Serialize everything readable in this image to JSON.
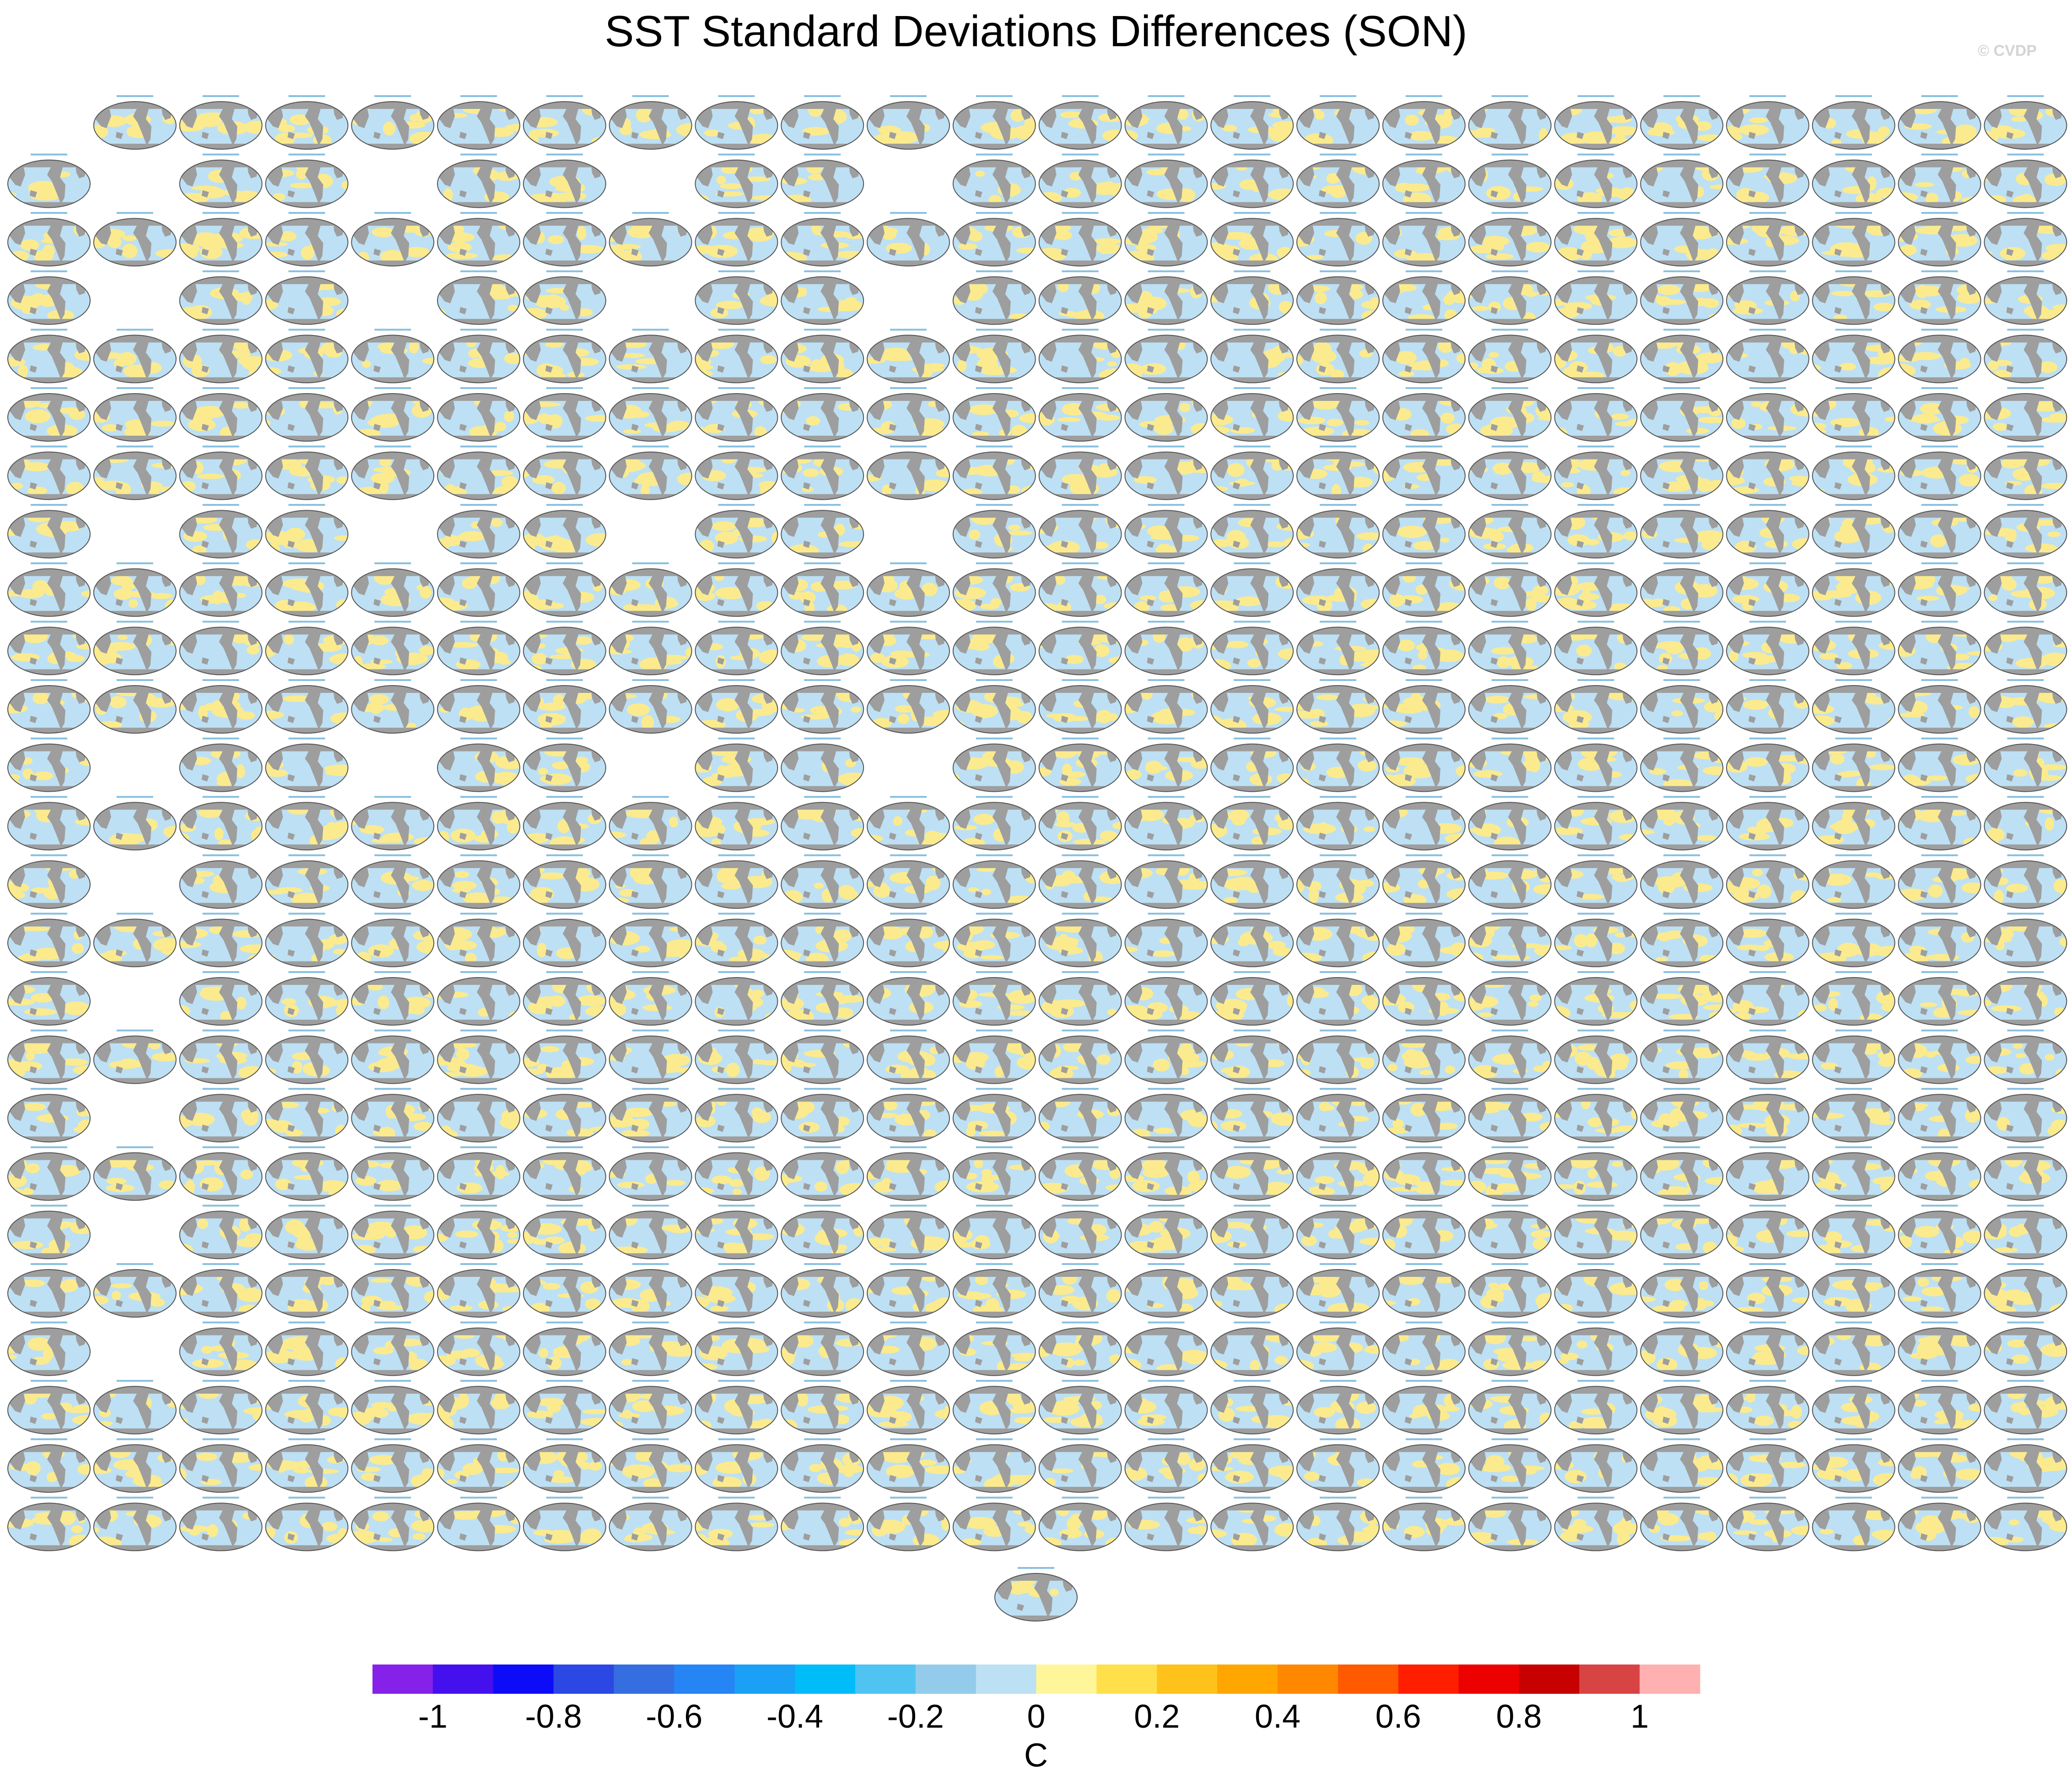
{
  "title": "SST Standard Deviations Differences (SON)",
  "watermark": "© CVDP",
  "colors": {
    "land": "#9e9e9e",
    "ocean_negative": "#bde0f4",
    "ocean_positive": "#fbeb8e",
    "outline": "#555555"
  },
  "panel_grid": {
    "rows": 25,
    "cols": 24,
    "pattern_full_rows": [
      1,
      3,
      5,
      6,
      7,
      9,
      10,
      11,
      13,
      15,
      17,
      19,
      21,
      23,
      24,
      25
    ],
    "row_present_cols": {
      "1": [
        2,
        3,
        4,
        5,
        6,
        7,
        8,
        9,
        10,
        11,
        12,
        13,
        14,
        15,
        16,
        17,
        18,
        19,
        20,
        21,
        22,
        23,
        24
      ],
      "2": [
        1,
        3,
        4,
        6,
        7,
        9,
        10,
        12,
        13,
        14,
        15,
        16,
        17,
        18,
        19,
        20,
        21,
        22,
        23,
        24
      ],
      "4": [
        1,
        3,
        4,
        6,
        7,
        9,
        10,
        12,
        13,
        14,
        15,
        16,
        17,
        18,
        19,
        20,
        21,
        22,
        23,
        24
      ],
      "8": [
        1,
        3,
        4,
        6,
        7,
        9,
        10,
        12,
        13,
        14,
        15,
        16,
        17,
        18,
        19,
        20,
        21,
        22,
        23,
        24
      ],
      "12": [
        1,
        3,
        4,
        6,
        7,
        9,
        10,
        12,
        13,
        14,
        15,
        16,
        17,
        18,
        19,
        20,
        21,
        22,
        23,
        24
      ],
      "14": [
        1,
        3,
        4,
        5,
        6,
        7,
        8,
        9,
        10,
        11,
        12,
        13,
        14,
        15,
        16,
        17,
        18,
        19,
        20,
        21,
        22,
        23,
        24
      ],
      "16": [
        1,
        3,
        4,
        5,
        6,
        7,
        8,
        9,
        10,
        11,
        12,
        13,
        14,
        15,
        16,
        17,
        18,
        19,
        20,
        21,
        22,
        23,
        24
      ],
      "18": [
        1,
        3,
        4,
        5,
        6,
        7,
        8,
        9,
        10,
        11,
        12,
        13,
        14,
        15,
        16,
        17,
        18,
        19,
        20,
        21,
        22,
        23,
        24
      ],
      "20": [
        1,
        3,
        4,
        5,
        6,
        7,
        8,
        9,
        10,
        11,
        12,
        13,
        14,
        15,
        16,
        17,
        18,
        19,
        20,
        21,
        22,
        23,
        24
      ],
      "22": [
        1,
        3,
        4,
        5,
        6,
        7,
        8,
        9,
        10,
        11,
        12,
        13,
        14,
        15,
        16,
        17,
        18,
        19,
        20,
        21,
        22,
        23,
        24
      ]
    },
    "extra_panel": "centered below last row"
  },
  "colorbar": {
    "unit_label": "C",
    "colors": [
      "#8621ea",
      "#4510ee",
      "#0c0cf8",
      "#2c48e4",
      "#356ee0",
      "#2585f4",
      "#1aa0f5",
      "#00bcf9",
      "#4fc3f1",
      "#93ccea",
      "#bce0f4",
      "#fff69a",
      "#ffe04b",
      "#ffc21b",
      "#ffa600",
      "#ff8800",
      "#ff5a00",
      "#ff1e00",
      "#ed0000",
      "#c70000",
      "#d84444",
      "#ffb0b0"
    ],
    "tick_labels": [
      "-1",
      "-0.8",
      "-0.6",
      "-0.4",
      "-0.2",
      "0",
      "0.2",
      "0.4",
      "0.6",
      "0.8",
      "1"
    ]
  }
}
